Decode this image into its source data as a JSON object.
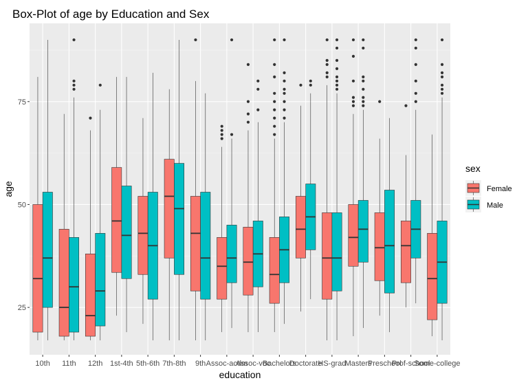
{
  "chart_data": {
    "type": "boxplot",
    "title": "Box-Plot of age by Education and Sex",
    "xlabel": "education",
    "ylabel": "age",
    "ylim": [
      13.5,
      94
    ],
    "yticks": [
      25,
      50,
      75
    ],
    "grid": true,
    "legend": {
      "title": "sex",
      "position": "right"
    },
    "categories": [
      "10th",
      "11th",
      "12th",
      "1st-4th",
      "5th-6th",
      "7th-8th",
      "9th",
      "Assoc-acdm",
      "Assoc-voc",
      "Bachelors",
      "Doctorate",
      "HS-grad",
      "Masters",
      "Preschool",
      "Prof-school",
      "Some-college"
    ],
    "series": [
      {
        "name": "Female",
        "color": "#F8766D",
        "boxes": [
          {
            "min": 17,
            "q1": 19,
            "median": 32,
            "q3": 50,
            "max": 81,
            "outliers": []
          },
          {
            "min": 17,
            "q1": 18,
            "median": 25,
            "q3": 44,
            "max": 72,
            "outliers": []
          },
          {
            "min": 17,
            "q1": 18,
            "median": 23,
            "q3": 38,
            "max": 68,
            "outliers": [
              71
            ]
          },
          {
            "min": 23,
            "q1": 33.5,
            "median": 46,
            "q3": 59,
            "max": 81,
            "outliers": []
          },
          {
            "min": 21,
            "q1": 33,
            "median": 43,
            "q3": 52,
            "max": 71,
            "outliers": []
          },
          {
            "min": 17,
            "q1": 37,
            "median": 52,
            "q3": 61,
            "max": 78,
            "outliers": []
          },
          {
            "min": 17,
            "q1": 29,
            "median": 43,
            "q3": 52,
            "max": 80,
            "outliers": [
              90
            ]
          },
          {
            "min": 19,
            "q1": 27,
            "median": 35,
            "q3": 42,
            "max": 64,
            "outliers": [
              66,
              67,
              68,
              69
            ]
          },
          {
            "min": 19,
            "q1": 28,
            "median": 36,
            "q3": 44.5,
            "max": 68,
            "outliers": [
              70,
              72,
              75,
              84
            ]
          },
          {
            "min": 19,
            "q1": 26,
            "median": 33,
            "q3": 42,
            "max": 66,
            "outliers": [
              67,
              69,
              71,
              73,
              75,
              77,
              81,
              84,
              90
            ]
          },
          {
            "min": 24,
            "q1": 37,
            "median": 44,
            "q3": 52,
            "max": 74,
            "outliers": [
              79
            ]
          },
          {
            "min": 17,
            "q1": 27,
            "median": 37,
            "q3": 48,
            "max": 79,
            "outliers": [
              81,
              82,
              84,
              85,
              90
            ]
          },
          {
            "min": 18,
            "q1": 35,
            "median": 42,
            "q3": 50,
            "max": 72,
            "outliers": [
              74,
              75,
              76,
              80,
              86,
              90
            ]
          },
          {
            "min": 23,
            "q1": 31.5,
            "median": 39.5,
            "q3": 48,
            "max": 66,
            "outliers": [
              75
            ]
          },
          {
            "min": 25,
            "q1": 31,
            "median": 40,
            "q3": 46,
            "max": 62,
            "outliers": [
              74
            ]
          },
          {
            "min": 18,
            "q1": 22,
            "median": 32,
            "q3": 43,
            "max": 67,
            "outliers": []
          }
        ]
      },
      {
        "name": "Male",
        "color": "#00BFC4",
        "boxes": [
          {
            "min": 17,
            "q1": 25,
            "median": 37,
            "q3": 53,
            "max": 90,
            "outliers": []
          },
          {
            "min": 17,
            "q1": 19,
            "median": 30,
            "q3": 42,
            "max": 76,
            "outliers": [
              78,
              79,
              80,
              90
            ]
          },
          {
            "min": 17,
            "q1": 20.5,
            "median": 29,
            "q3": 43,
            "max": 73,
            "outliers": [
              79
            ]
          },
          {
            "min": 19,
            "q1": 32,
            "median": 42.5,
            "q3": 54.5,
            "max": 81,
            "outliers": []
          },
          {
            "min": 17,
            "q1": 27,
            "median": 40,
            "q3": 53,
            "max": 82,
            "outliers": []
          },
          {
            "min": 17,
            "q1": 33,
            "median": 49,
            "q3": 60,
            "max": 90,
            "outliers": []
          },
          {
            "min": 17,
            "q1": 27,
            "median": 37,
            "q3": 53,
            "max": 77,
            "outliers": []
          },
          {
            "min": 20,
            "q1": 31,
            "median": 37,
            "q3": 45,
            "max": 66,
            "outliers": [
              67,
              90
            ]
          },
          {
            "min": 19,
            "q1": 30,
            "median": 38,
            "q3": 46,
            "max": 70,
            "outliers": [
              73,
              78,
              80
            ]
          },
          {
            "min": 21,
            "q1": 31,
            "median": 39,
            "q3": 47,
            "max": 70,
            "outliers": [
              71,
              73,
              75,
              77,
              78,
              80,
              82,
              90
            ]
          },
          {
            "min": 27,
            "q1": 39,
            "median": 47,
            "q3": 55,
            "max": 77,
            "outliers": [
              79,
              80
            ]
          },
          {
            "min": 17,
            "q1": 29,
            "median": 37,
            "q3": 48,
            "max": 77,
            "outliers": [
              78,
              79,
              80,
              81,
              83,
              85,
              88,
              90
            ]
          },
          {
            "min": 20,
            "q1": 36,
            "median": 44,
            "q3": 51,
            "max": 73,
            "outliers": [
              74,
              75,
              76,
              78,
              80,
              81,
              88,
              90
            ]
          },
          {
            "min": 19,
            "q1": 28.5,
            "median": 40,
            "q3": 53.5,
            "max": 71,
            "outliers": []
          },
          {
            "min": 26,
            "q1": 37,
            "median": 44,
            "q3": 51,
            "max": 73,
            "outliers": [
              75,
              77,
              80,
              84,
              88,
              90
            ]
          },
          {
            "min": 17,
            "q1": 26,
            "median": 36,
            "q3": 46,
            "max": 76,
            "outliers": [
              77,
              78,
              79,
              81,
              82,
              84,
              90
            ]
          }
        ]
      }
    ]
  }
}
